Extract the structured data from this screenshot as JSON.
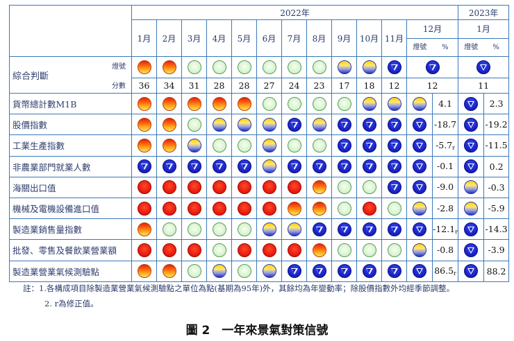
{
  "header": {
    "year_2022": "2022年",
    "year_2023": "1月",
    "year_2023_label": "2023年",
    "months_2022": [
      "1月",
      "2月",
      "3月",
      "4月",
      "5月",
      "6月",
      "7月",
      "8月",
      "9月",
      "10月",
      "11月"
    ],
    "dec_label": "12月",
    "jan_label": "1月",
    "sub_signal": "燈號",
    "sub_pct": "%"
  },
  "composite": {
    "label": "綜合判斷",
    "signal_label": "燈號",
    "score_label": "分數",
    "signals": [
      "yr",
      "yr",
      "grn",
      "grn",
      "grn",
      "grn",
      "grn",
      "grn",
      "yb",
      "yb",
      "blu",
      "blu",
      "blu"
    ],
    "scores": [
      "36",
      "34",
      "31",
      "28",
      "28",
      "27",
      "24",
      "23",
      "17",
      "18",
      "12",
      "12",
      "11"
    ]
  },
  "rows": [
    {
      "label": "貨幣總計數M1B",
      "signals": [
        "yr",
        "yr",
        "yr",
        "yr",
        "yr",
        "grn",
        "grn",
        "grn",
        "grn",
        "yb",
        "yb",
        "yb",
        "blu"
      ],
      "dec_pct": "4.1",
      "dec_r": "",
      "jan_pct": "2.3"
    },
    {
      "label": "股價指數",
      "signals": [
        "yr",
        "yr",
        "grn",
        "yb",
        "yb",
        "yb",
        "blu",
        "yb",
        "blu",
        "blu",
        "blu",
        "blu",
        "blu"
      ],
      "dec_pct": "-18.7",
      "dec_r": "",
      "jan_pct": "-19.2"
    },
    {
      "label": "工業生產指數",
      "signals": [
        "yr",
        "yr",
        "yb",
        "grn",
        "grn",
        "yb",
        "grn",
        "grn",
        "blu",
        "blu",
        "blu",
        "blu",
        "blu"
      ],
      "dec_pct": "-5.7",
      "dec_r": "r",
      "jan_pct": "-11.5"
    },
    {
      "label": "非農業部門就業人數",
      "signals": [
        "blu",
        "blu",
        "blu",
        "blu",
        "blu",
        "yb",
        "blu",
        "blu",
        "blu",
        "blu",
        "blu",
        "blu",
        "blu"
      ],
      "dec_pct": "-0.1",
      "dec_r": "",
      "jan_pct": "0.2"
    },
    {
      "label": "海關出口值",
      "signals": [
        "red",
        "red",
        "red",
        "red",
        "red",
        "red",
        "red",
        "yr",
        "grn",
        "grn",
        "blu",
        "blu",
        "yb"
      ],
      "dec_pct": "-9.0",
      "dec_r": "",
      "jan_pct": "-0.3"
    },
    {
      "label": "機械及電機設備進口值",
      "signals": [
        "red",
        "red",
        "red",
        "red",
        "red",
        "red",
        "yr",
        "yr",
        "grn",
        "red",
        "grn",
        "yb",
        "yb"
      ],
      "dec_pct": "-2.8",
      "dec_r": "",
      "jan_pct": "-5.9"
    },
    {
      "label": "製造業銷售量指數",
      "signals": [
        "yr",
        "grn",
        "grn",
        "grn",
        "grn",
        "yb",
        "yb",
        "blu",
        "blu",
        "blu",
        "blu",
        "blu",
        "blu"
      ],
      "dec_pct": "-12.1",
      "dec_r": "r",
      "jan_pct": "-14.3"
    },
    {
      "label": "批發、零售及餐飲業營業額",
      "signals": [
        "red",
        "red",
        "red",
        "grn",
        "red",
        "red",
        "red",
        "yr",
        "grn",
        "grn",
        "grn",
        "yb",
        "blu"
      ],
      "dec_pct": "-0.8",
      "dec_r": "",
      "jan_pct": "-3.9"
    },
    {
      "label": "製造業營業氣候測驗點",
      "signals": [
        "yr",
        "yr",
        "grn",
        "yb",
        "grn",
        "yb",
        "blu",
        "blu",
        "blu",
        "blu",
        "blu",
        "blu",
        "blu"
      ],
      "dec_pct": "86.5",
      "dec_r": "r",
      "jan_pct": "88.2"
    }
  ],
  "notes": {
    "note1": "註：1.各構成項目除製造業營業氣候測驗點之單位為點(基期為95年)外，其餘均為年變動率；除股價指數外均經季節調整。",
    "note2": "2. r為修正值。"
  },
  "caption": "圖 2　一年來景氣對策信號",
  "legend_colors": {
    "red": "#e81c10",
    "yellow_red": "#ff8a10",
    "green": "#d8f3d0",
    "yellow_blue": "#ffe870",
    "blue": "#1a24c8"
  }
}
